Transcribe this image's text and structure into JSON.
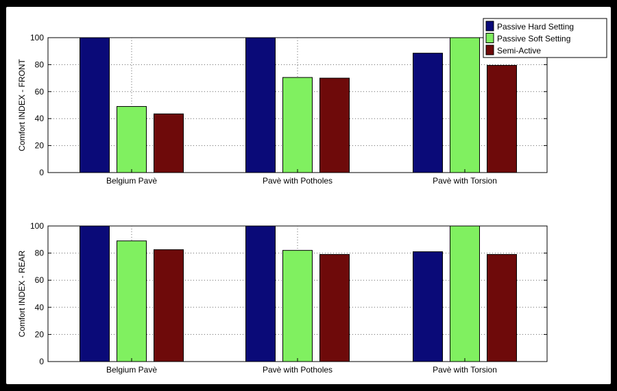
{
  "colors": {
    "passive_hard": "#0a0a78",
    "passive_soft": "#80f060",
    "semi_active": "#6e0a0a"
  },
  "legend": {
    "placement": "top-right",
    "entries": [
      "Passive Hard Setting",
      "Passive Soft Setting",
      "Semi-Active"
    ]
  },
  "chart_data": [
    {
      "type": "bar",
      "title": "",
      "xlabel": "",
      "ylabel": "Comfort INDEX - FRONT",
      "ylim": [
        0,
        100
      ],
      "yticks": [
        0,
        20,
        40,
        60,
        80,
        100
      ],
      "grid": "dotted",
      "categories": [
        "Belgium Pavè",
        "Pavè with Potholes",
        "Pavè with Torsion"
      ],
      "series": [
        {
          "name": "Passive Hard Setting",
          "values": [
            100,
            100,
            88.5
          ]
        },
        {
          "name": "Passive Soft Setting",
          "values": [
            49,
            70.5,
            100
          ]
        },
        {
          "name": "Semi-Active",
          "values": [
            43.5,
            70,
            79.5
          ]
        }
      ]
    },
    {
      "type": "bar",
      "title": "",
      "xlabel": "",
      "ylabel": "Comfort INDEX - REAR",
      "ylim": [
        0,
        100
      ],
      "yticks": [
        0,
        20,
        40,
        60,
        80,
        100
      ],
      "grid": "dotted",
      "categories": [
        "Belgium Pavè",
        "Pavè with Potholes",
        "Pavè with Torsion"
      ],
      "series": [
        {
          "name": "Passive Hard Setting",
          "values": [
            100,
            100,
            81
          ]
        },
        {
          "name": "Passive Soft Setting",
          "values": [
            89,
            82,
            100
          ]
        },
        {
          "name": "Semi-Active",
          "values": [
            82.5,
            79,
            79
          ]
        }
      ]
    }
  ]
}
